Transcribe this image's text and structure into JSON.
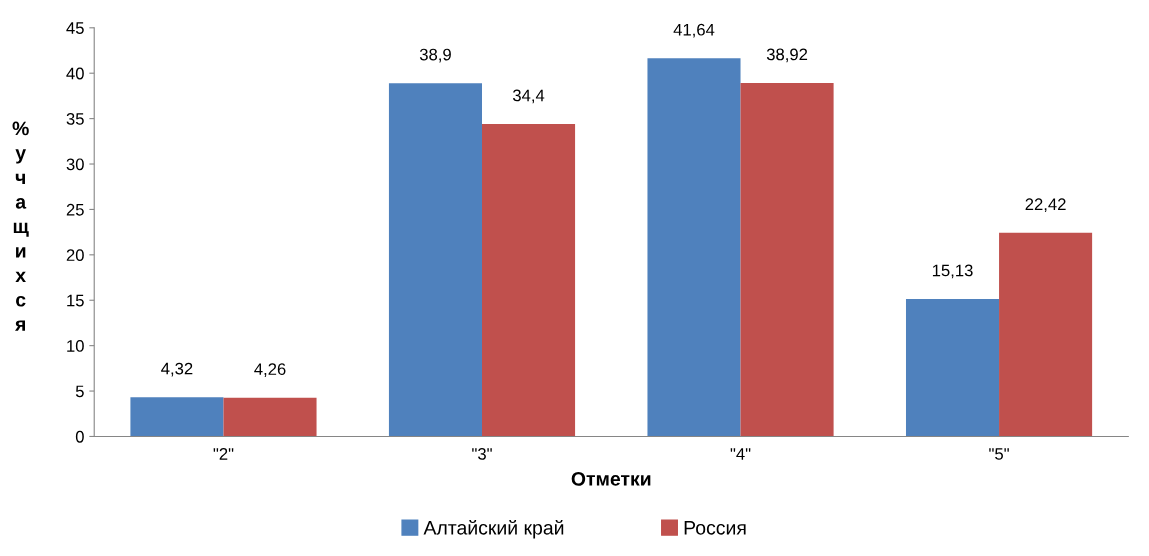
{
  "chart_data": {
    "type": "bar",
    "xlabel": "Отметки",
    "ylabel": "% учащихся",
    "categories": [
      "\"2\"",
      "\"3\"",
      "\"4\"",
      "\"5\""
    ],
    "series": [
      {
        "name": "Алтайский край",
        "color": "#4f81bd",
        "values": [
          4.32,
          38.9,
          41.64,
          15.13
        ],
        "value_labels": [
          "4,32",
          "38,9",
          "41,64",
          "15,13"
        ]
      },
      {
        "name": "Россия",
        "color": "#c0504d",
        "values": [
          4.26,
          34.4,
          38.92,
          22.42
        ],
        "value_labels": [
          "4,26",
          "34,4",
          "38,92",
          "22,42"
        ]
      }
    ],
    "ylim": [
      0,
      45
    ],
    "yticks": [
      0,
      5,
      10,
      15,
      20,
      25,
      30,
      35,
      40,
      45
    ],
    "grid": false,
    "legend": "bottom"
  }
}
